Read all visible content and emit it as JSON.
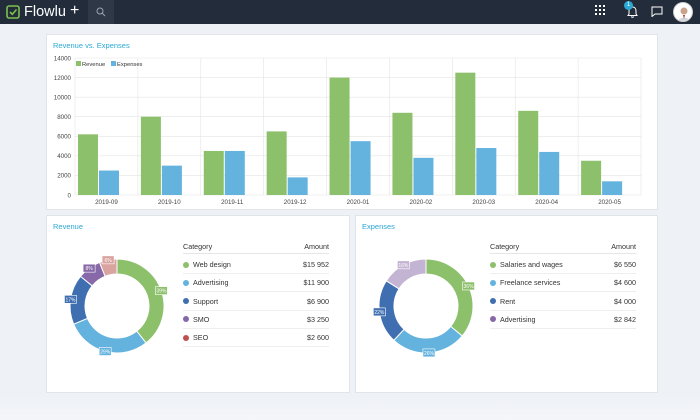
{
  "app": {
    "name": "Flowlu",
    "notification_count": "1"
  },
  "colors": {
    "revenue": "#8cc06b",
    "expenses": "#63b3de",
    "accent": "#2aa8d6",
    "topbar": "#232c3a"
  },
  "main_chart": {
    "title": "Revenue vs. Expenses",
    "chart_data": {
      "type": "bar",
      "title": "Revenue vs. Expenses",
      "categories": [
        "2019-09",
        "2019-10",
        "2019-11",
        "2019-12",
        "2020-01",
        "2020-02",
        "2020-03",
        "2020-04",
        "2020-05"
      ],
      "series": [
        {
          "name": "Revenue",
          "values": [
            6200,
            8000,
            4500,
            6500,
            12000,
            8400,
            12500,
            8600,
            3500
          ]
        },
        {
          "name": "Expenses",
          "values": [
            2500,
            3000,
            4500,
            1800,
            5500,
            3800,
            4800,
            4400,
            1400
          ]
        }
      ],
      "yticks": [
        "0",
        "2000",
        "4000",
        "6000",
        "8000",
        "10000",
        "12000",
        "14000"
      ],
      "ylim": [
        0,
        14000
      ],
      "legend": "top-left"
    }
  },
  "revenue_panel": {
    "title": "Revenue",
    "table_headers": {
      "category": "Category",
      "amount": "Amount"
    },
    "rows": [
      {
        "category": "Web design",
        "amount": "$15 952",
        "color": "#8cc06b"
      },
      {
        "category": "Advertising",
        "amount": "$11 900",
        "color": "#63b3de"
      },
      {
        "category": "Support",
        "amount": "$6 900",
        "color": "#3f6fb0"
      },
      {
        "category": "SMO",
        "amount": "$3 250",
        "color": "#8768a8"
      },
      {
        "category": "SEO",
        "amount": "$2 600",
        "color": "#c0504d"
      }
    ],
    "donut": {
      "type": "pie",
      "values": [
        39,
        29,
        17,
        8,
        6
      ],
      "labels": [
        "39%",
        "29%",
        "17%",
        "8%",
        "6%"
      ],
      "colors": [
        "#8cc06b",
        "#63b3de",
        "#3f6fb0",
        "#8768a8",
        "#d9a3a0"
      ]
    }
  },
  "expenses_panel": {
    "title": "Expenses",
    "table_headers": {
      "category": "Category",
      "amount": "Amount"
    },
    "rows": [
      {
        "category": "Salaries and wages",
        "amount": "$6 550",
        "color": "#8cc06b"
      },
      {
        "category": "Freelance services",
        "amount": "$4 600",
        "color": "#63b3de"
      },
      {
        "category": "Rent",
        "amount": "$4 000",
        "color": "#3f6fb0"
      },
      {
        "category": "Advertising",
        "amount": "$2 842",
        "color": "#8768a8"
      }
    ],
    "donut": {
      "type": "pie",
      "values": [
        36,
        26,
        22,
        16
      ],
      "labels": [
        "36%",
        "26%",
        "22%",
        "16%"
      ],
      "colors": [
        "#8cc06b",
        "#63b3de",
        "#3f6fb0",
        "#c4b4d3"
      ]
    }
  }
}
